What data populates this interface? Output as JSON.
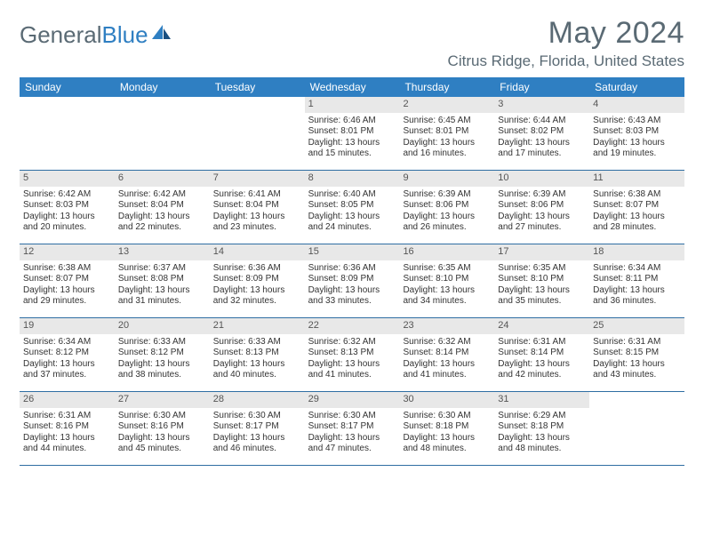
{
  "logo": {
    "text1": "General",
    "text2": "Blue",
    "color1": "#5a6a74",
    "color2": "#2f7fc2"
  },
  "title": "May 2024",
  "location": "Citrus Ridge, Florida, United States",
  "header_bg": "#2f7fc2",
  "header_fg": "#ffffff",
  "daynum_bg": "#e8e8e8",
  "border_color": "#2f6ea3",
  "dow": [
    "Sunday",
    "Monday",
    "Tuesday",
    "Wednesday",
    "Thursday",
    "Friday",
    "Saturday"
  ],
  "weeks": [
    [
      {
        "n": "",
        "lines": []
      },
      {
        "n": "",
        "lines": []
      },
      {
        "n": "",
        "lines": []
      },
      {
        "n": "1",
        "lines": [
          "Sunrise: 6:46 AM",
          "Sunset: 8:01 PM",
          "Daylight: 13 hours",
          "and 15 minutes."
        ]
      },
      {
        "n": "2",
        "lines": [
          "Sunrise: 6:45 AM",
          "Sunset: 8:01 PM",
          "Daylight: 13 hours",
          "and 16 minutes."
        ]
      },
      {
        "n": "3",
        "lines": [
          "Sunrise: 6:44 AM",
          "Sunset: 8:02 PM",
          "Daylight: 13 hours",
          "and 17 minutes."
        ]
      },
      {
        "n": "4",
        "lines": [
          "Sunrise: 6:43 AM",
          "Sunset: 8:03 PM",
          "Daylight: 13 hours",
          "and 19 minutes."
        ]
      }
    ],
    [
      {
        "n": "5",
        "lines": [
          "Sunrise: 6:42 AM",
          "Sunset: 8:03 PM",
          "Daylight: 13 hours",
          "and 20 minutes."
        ]
      },
      {
        "n": "6",
        "lines": [
          "Sunrise: 6:42 AM",
          "Sunset: 8:04 PM",
          "Daylight: 13 hours",
          "and 22 minutes."
        ]
      },
      {
        "n": "7",
        "lines": [
          "Sunrise: 6:41 AM",
          "Sunset: 8:04 PM",
          "Daylight: 13 hours",
          "and 23 minutes."
        ]
      },
      {
        "n": "8",
        "lines": [
          "Sunrise: 6:40 AM",
          "Sunset: 8:05 PM",
          "Daylight: 13 hours",
          "and 24 minutes."
        ]
      },
      {
        "n": "9",
        "lines": [
          "Sunrise: 6:39 AM",
          "Sunset: 8:06 PM",
          "Daylight: 13 hours",
          "and 26 minutes."
        ]
      },
      {
        "n": "10",
        "lines": [
          "Sunrise: 6:39 AM",
          "Sunset: 8:06 PM",
          "Daylight: 13 hours",
          "and 27 minutes."
        ]
      },
      {
        "n": "11",
        "lines": [
          "Sunrise: 6:38 AM",
          "Sunset: 8:07 PM",
          "Daylight: 13 hours",
          "and 28 minutes."
        ]
      }
    ],
    [
      {
        "n": "12",
        "lines": [
          "Sunrise: 6:38 AM",
          "Sunset: 8:07 PM",
          "Daylight: 13 hours",
          "and 29 minutes."
        ]
      },
      {
        "n": "13",
        "lines": [
          "Sunrise: 6:37 AM",
          "Sunset: 8:08 PM",
          "Daylight: 13 hours",
          "and 31 minutes."
        ]
      },
      {
        "n": "14",
        "lines": [
          "Sunrise: 6:36 AM",
          "Sunset: 8:09 PM",
          "Daylight: 13 hours",
          "and 32 minutes."
        ]
      },
      {
        "n": "15",
        "lines": [
          "Sunrise: 6:36 AM",
          "Sunset: 8:09 PM",
          "Daylight: 13 hours",
          "and 33 minutes."
        ]
      },
      {
        "n": "16",
        "lines": [
          "Sunrise: 6:35 AM",
          "Sunset: 8:10 PM",
          "Daylight: 13 hours",
          "and 34 minutes."
        ]
      },
      {
        "n": "17",
        "lines": [
          "Sunrise: 6:35 AM",
          "Sunset: 8:10 PM",
          "Daylight: 13 hours",
          "and 35 minutes."
        ]
      },
      {
        "n": "18",
        "lines": [
          "Sunrise: 6:34 AM",
          "Sunset: 8:11 PM",
          "Daylight: 13 hours",
          "and 36 minutes."
        ]
      }
    ],
    [
      {
        "n": "19",
        "lines": [
          "Sunrise: 6:34 AM",
          "Sunset: 8:12 PM",
          "Daylight: 13 hours",
          "and 37 minutes."
        ]
      },
      {
        "n": "20",
        "lines": [
          "Sunrise: 6:33 AM",
          "Sunset: 8:12 PM",
          "Daylight: 13 hours",
          "and 38 minutes."
        ]
      },
      {
        "n": "21",
        "lines": [
          "Sunrise: 6:33 AM",
          "Sunset: 8:13 PM",
          "Daylight: 13 hours",
          "and 40 minutes."
        ]
      },
      {
        "n": "22",
        "lines": [
          "Sunrise: 6:32 AM",
          "Sunset: 8:13 PM",
          "Daylight: 13 hours",
          "and 41 minutes."
        ]
      },
      {
        "n": "23",
        "lines": [
          "Sunrise: 6:32 AM",
          "Sunset: 8:14 PM",
          "Daylight: 13 hours",
          "and 41 minutes."
        ]
      },
      {
        "n": "24",
        "lines": [
          "Sunrise: 6:31 AM",
          "Sunset: 8:14 PM",
          "Daylight: 13 hours",
          "and 42 minutes."
        ]
      },
      {
        "n": "25",
        "lines": [
          "Sunrise: 6:31 AM",
          "Sunset: 8:15 PM",
          "Daylight: 13 hours",
          "and 43 minutes."
        ]
      }
    ],
    [
      {
        "n": "26",
        "lines": [
          "Sunrise: 6:31 AM",
          "Sunset: 8:16 PM",
          "Daylight: 13 hours",
          "and 44 minutes."
        ]
      },
      {
        "n": "27",
        "lines": [
          "Sunrise: 6:30 AM",
          "Sunset: 8:16 PM",
          "Daylight: 13 hours",
          "and 45 minutes."
        ]
      },
      {
        "n": "28",
        "lines": [
          "Sunrise: 6:30 AM",
          "Sunset: 8:17 PM",
          "Daylight: 13 hours",
          "and 46 minutes."
        ]
      },
      {
        "n": "29",
        "lines": [
          "Sunrise: 6:30 AM",
          "Sunset: 8:17 PM",
          "Daylight: 13 hours",
          "and 47 minutes."
        ]
      },
      {
        "n": "30",
        "lines": [
          "Sunrise: 6:30 AM",
          "Sunset: 8:18 PM",
          "Daylight: 13 hours",
          "and 48 minutes."
        ]
      },
      {
        "n": "31",
        "lines": [
          "Sunrise: 6:29 AM",
          "Sunset: 8:18 PM",
          "Daylight: 13 hours",
          "and 48 minutes."
        ]
      },
      {
        "n": "",
        "lines": []
      }
    ]
  ]
}
